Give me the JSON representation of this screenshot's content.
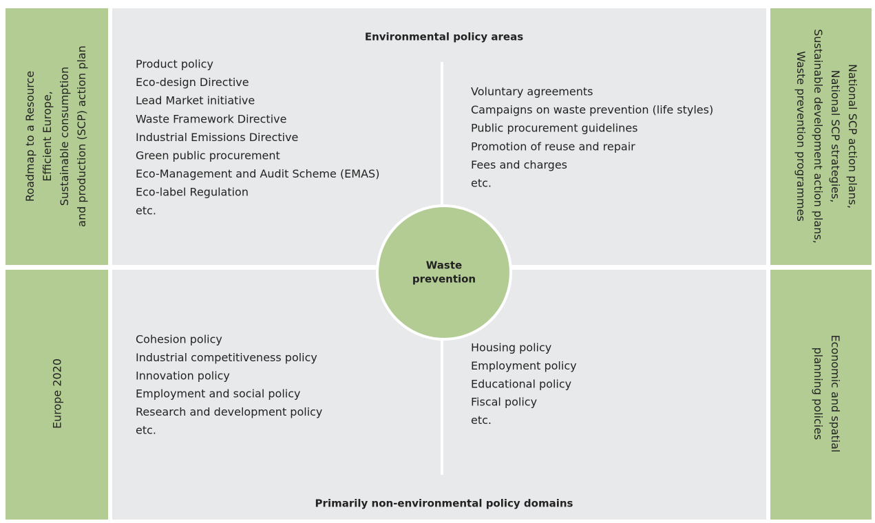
{
  "top_title": "Environmental policy areas",
  "bottom_title": "Primarily non-environmental policy domains",
  "center": [
    "Waste",
    "prevention"
  ],
  "left": {
    "top": [
      "Roadmap to a Resource",
      "Efficient Europe,",
      "Sustainable consumption",
      "and production (SCP) action plan"
    ],
    "bottom": [
      "Europe 2020"
    ]
  },
  "right": {
    "top": [
      "National SCP action plans,",
      "National SCP strategies,",
      "Sustainable development action plans,",
      "Waste prevention programmes"
    ],
    "bottom": [
      "Economic and spatial",
      "planning policies"
    ]
  },
  "quadrants": {
    "top_left": [
      "Product policy",
      "Eco-design Directive",
      "Lead Market initiative",
      "Waste Framework Directive",
      "Industrial Emissions Directive",
      "Green public procurement",
      "Eco-Management and Audit Scheme (EMAS)",
      "Eco-label Regulation",
      "etc."
    ],
    "top_right": [
      "Voluntary agreements",
      "Campaigns on waste prevention (life styles)",
      "Public procurement guidelines",
      "Promotion of reuse and repair",
      "Fees and charges",
      "etc."
    ],
    "bottom_left": [
      "Cohesion policy",
      "Industrial competitiveness policy",
      "Innovation policy",
      "Employment and social policy",
      "Research and development policy",
      "etc."
    ],
    "bottom_right": [
      "Housing policy",
      "Employment policy",
      "Educational policy",
      "Fiscal policy",
      "etc."
    ]
  }
}
